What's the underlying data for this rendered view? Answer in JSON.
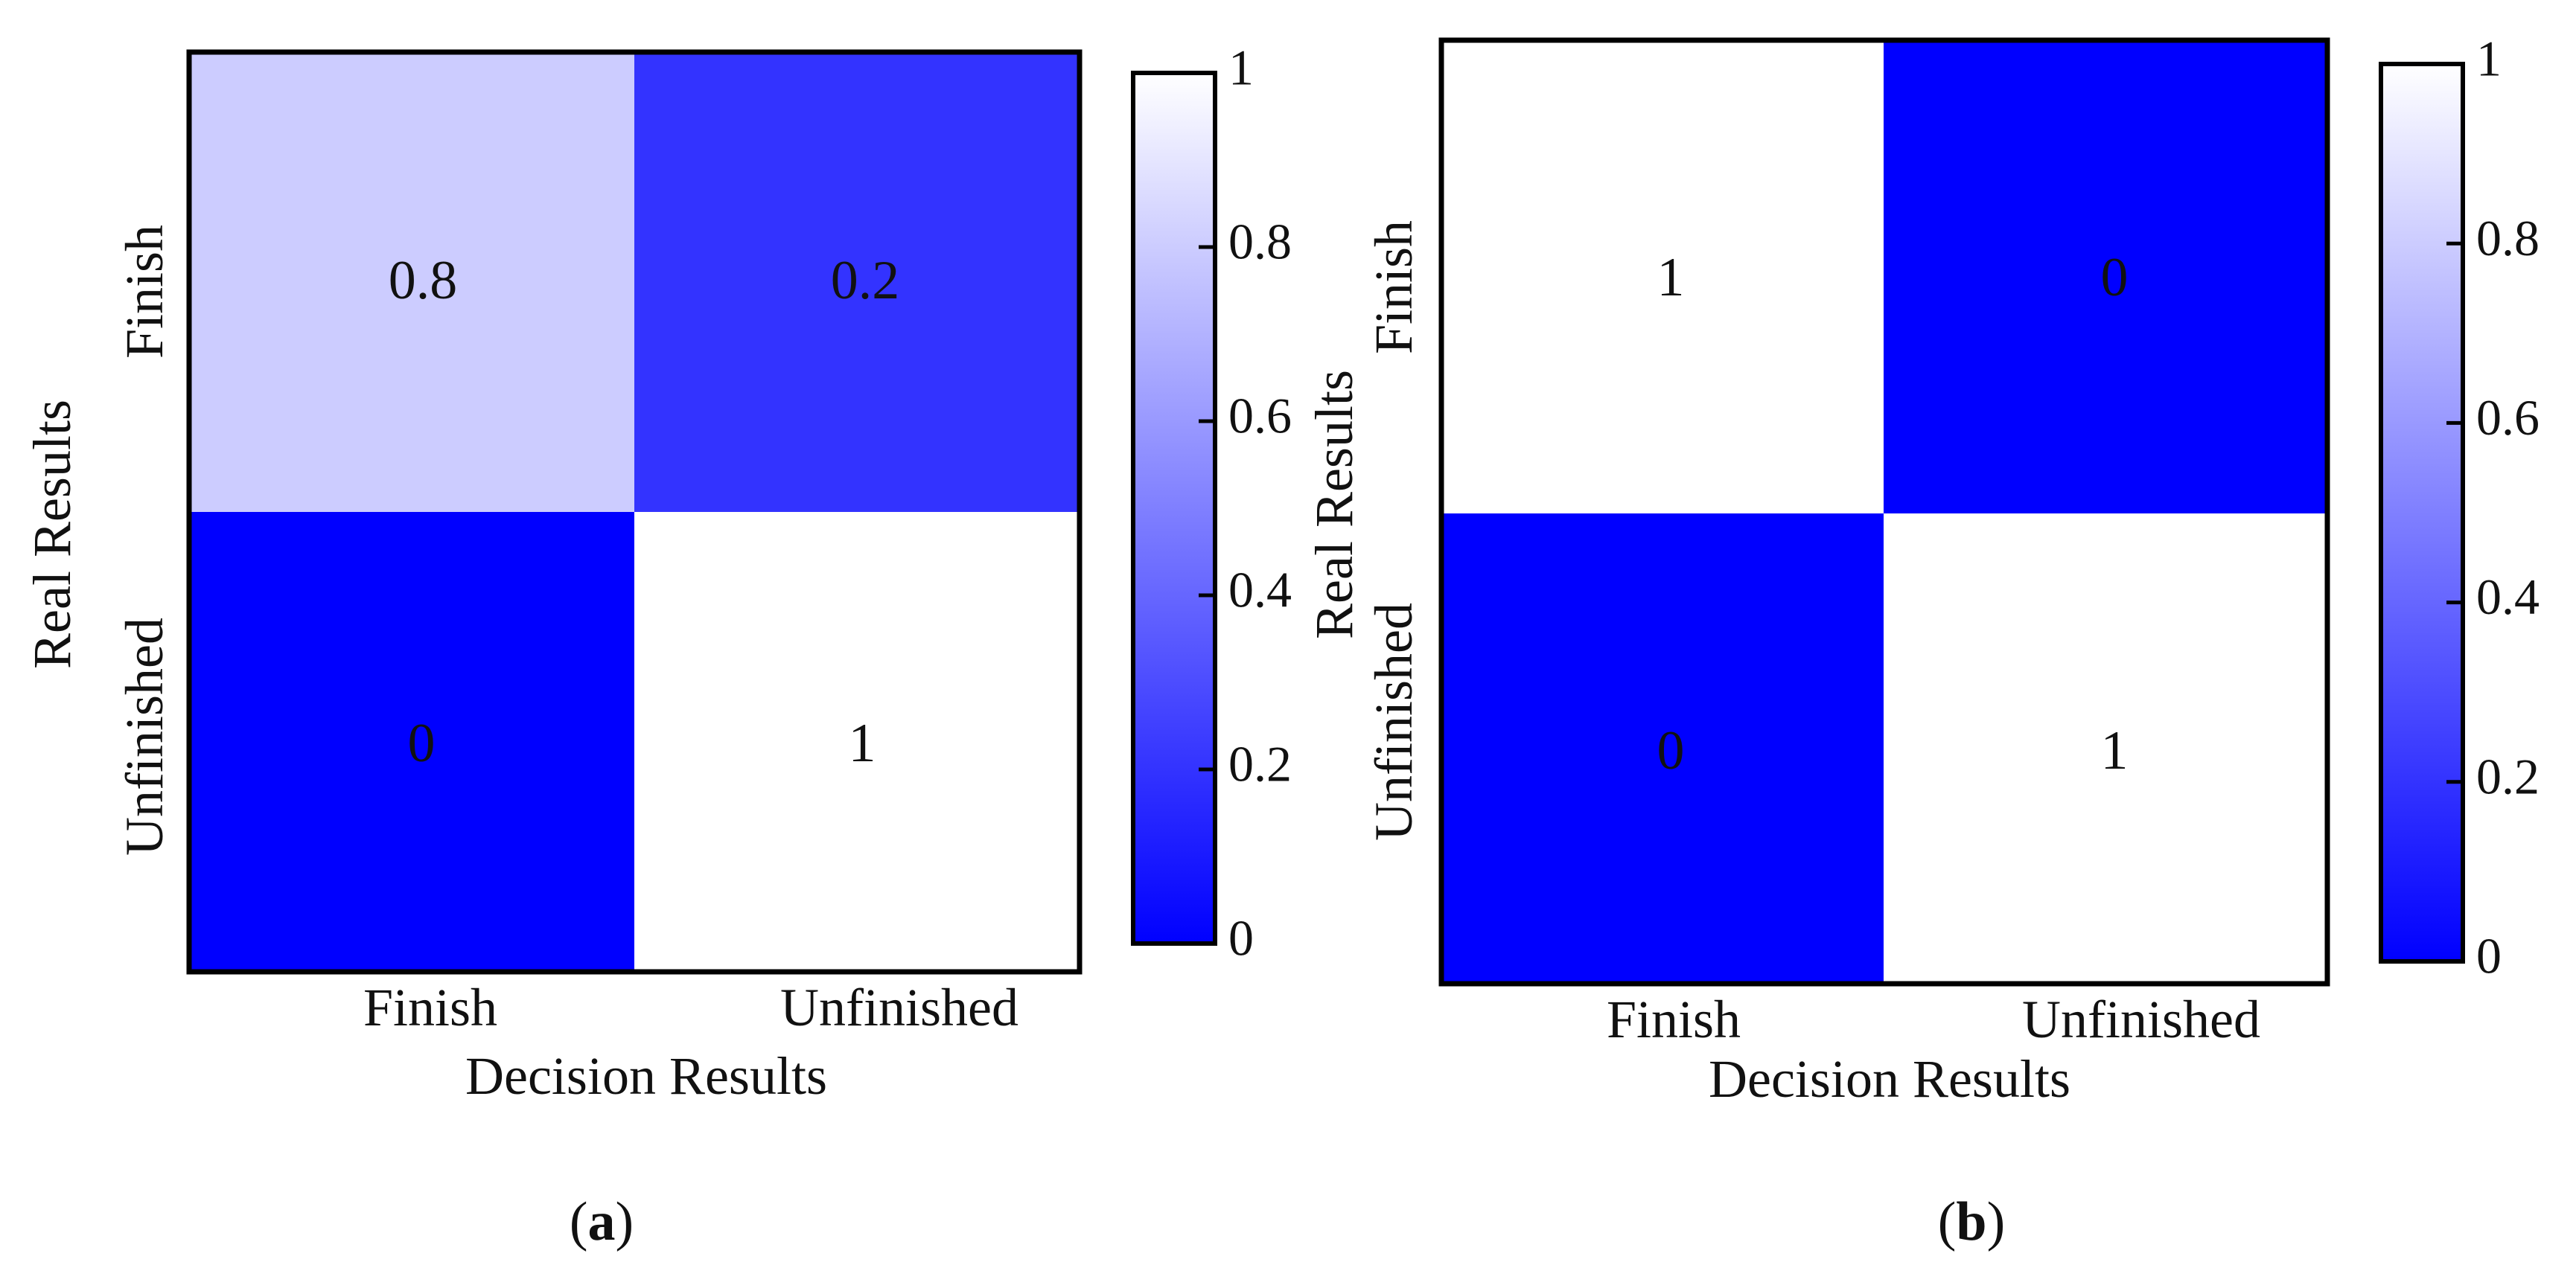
{
  "chart_data": [
    {
      "type": "heatmap",
      "panel_label": {
        "open": "(",
        "letter": "a",
        "close": ")"
      },
      "xlabel": "Decision Results",
      "ylabel": "Real Results",
      "x_categories": [
        "Finish",
        "Unfinished"
      ],
      "y_categories": [
        "Finish",
        "Unfinished"
      ],
      "values": [
        [
          0.8,
          0.2
        ],
        [
          0,
          1
        ]
      ],
      "value_labels": [
        [
          "0.8",
          "0.2"
        ],
        [
          "0",
          "1"
        ]
      ],
      "colorbar": {
        "range": [
          0,
          1
        ],
        "ticks": [
          0,
          0.2,
          0.4,
          0.6,
          0.8,
          1
        ],
        "tick_labels": [
          "0",
          "0.2",
          "0.4",
          "0.6",
          "0.8",
          "1"
        ],
        "color_low": "#0000ff",
        "color_high": "#ffffff"
      }
    },
    {
      "type": "heatmap",
      "panel_label": {
        "open": "(",
        "letter": "b",
        "close": ")"
      },
      "xlabel": "Decision Results",
      "ylabel": "Real Results",
      "x_categories": [
        "Finish",
        "Unfinished"
      ],
      "y_categories": [
        "Finish",
        "Unfinished"
      ],
      "values": [
        [
          1,
          0
        ],
        [
          0,
          1
        ]
      ],
      "value_labels": [
        [
          "1",
          "0"
        ],
        [
          "0",
          "1"
        ]
      ],
      "colorbar": {
        "range": [
          0,
          1
        ],
        "ticks": [
          0,
          0.2,
          0.4,
          0.6,
          0.8,
          1
        ],
        "tick_labels": [
          "0",
          "0.2",
          "0.4",
          "0.6",
          "0.8",
          "1"
        ],
        "color_low": "#0000ff",
        "color_high": "#ffffff"
      }
    }
  ]
}
